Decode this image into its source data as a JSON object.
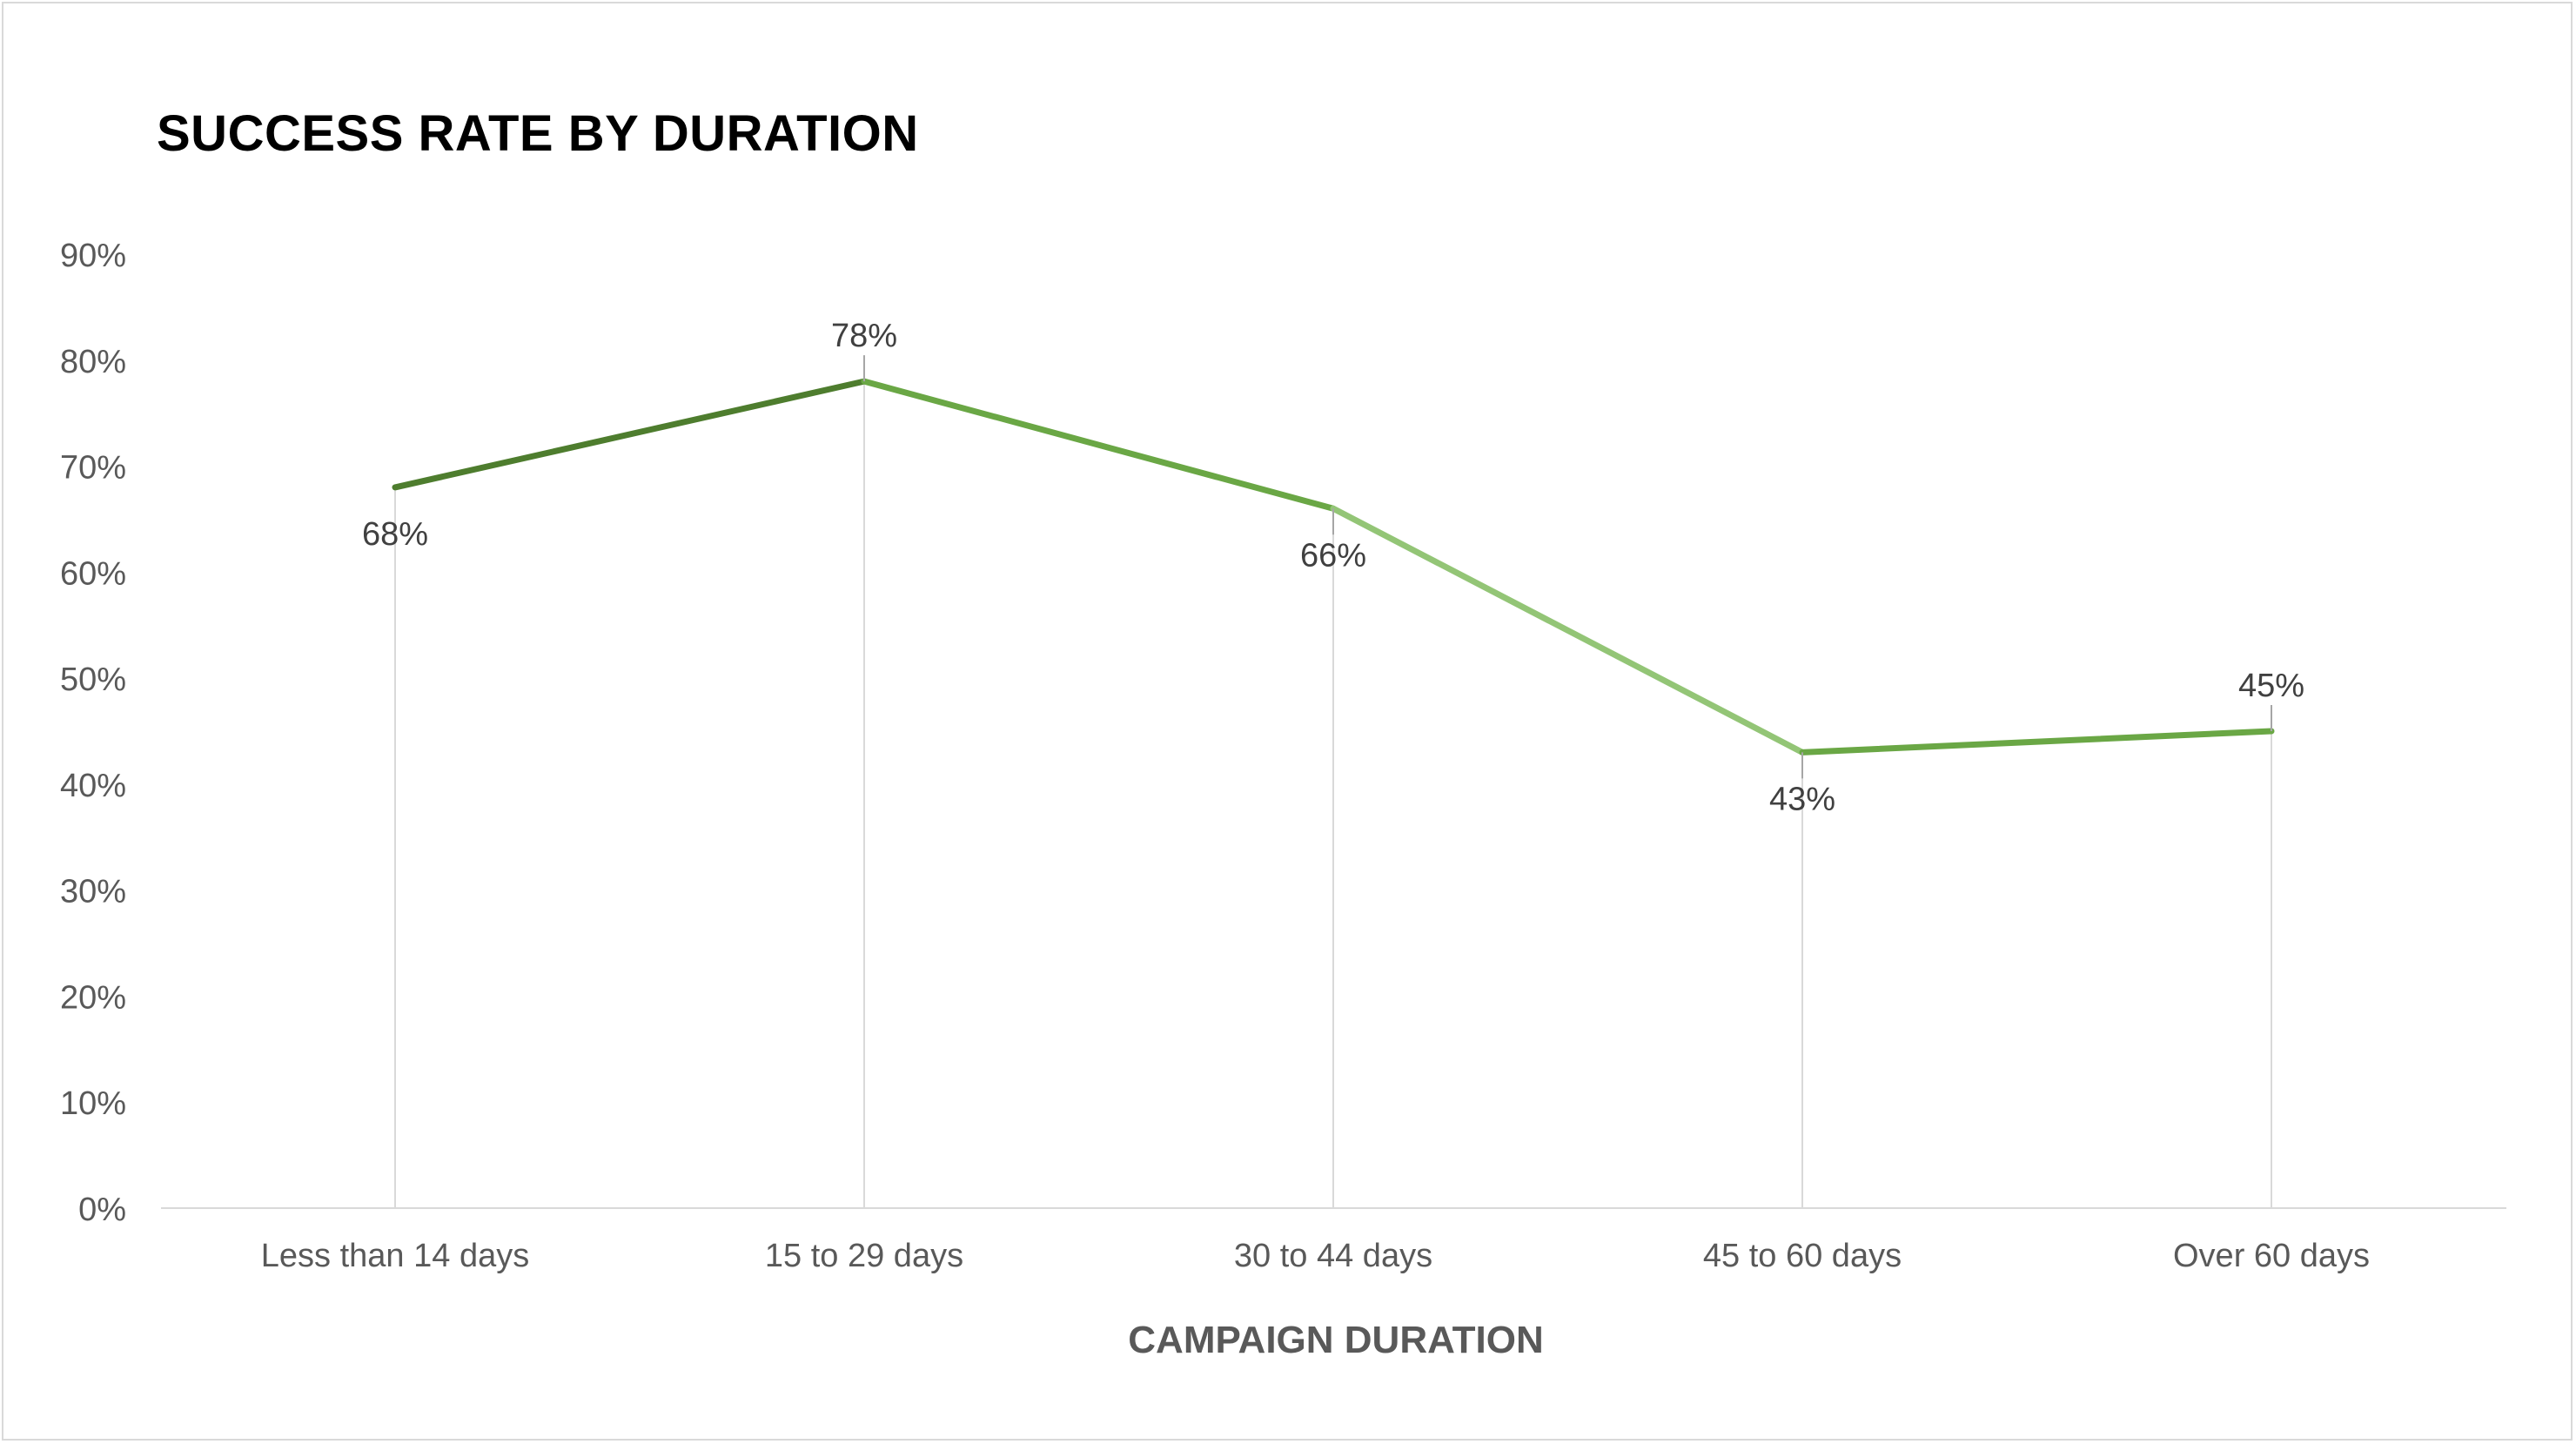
{
  "chart_data": {
    "type": "line",
    "title": "SUCCESS RATE BY DURATION",
    "xlabel": "CAMPAIGN DURATION",
    "ylabel": "",
    "categories": [
      "Less than 14 days",
      "15 to 29 days",
      "30 to 44 days",
      "45 to 60 days",
      "Over 60 days"
    ],
    "series": [
      {
        "values": [
          68,
          78,
          66,
          43,
          45
        ]
      }
    ],
    "data_labels": [
      "68%",
      "78%",
      "66%",
      "43%",
      "45%"
    ],
    "ylim": [
      0,
      90
    ],
    "yticks": [
      0,
      10,
      20,
      30,
      40,
      50,
      60,
      70,
      80,
      90
    ],
    "ytick_labels": [
      "0%",
      "10%",
      "20%",
      "30%",
      "40%",
      "50%",
      "60%",
      "70%",
      "80%",
      "90%"
    ],
    "grid": false,
    "drop_lines": true,
    "legend": "none",
    "colors": {
      "segments": [
        "#4e7d2e",
        "#6aa745",
        "#93c576",
        "#6aa745"
      ],
      "drop_line": "#d9d9d9",
      "axis_line": "#d9d9d9",
      "tick_text": "#595959",
      "label_text": "#404040"
    }
  }
}
